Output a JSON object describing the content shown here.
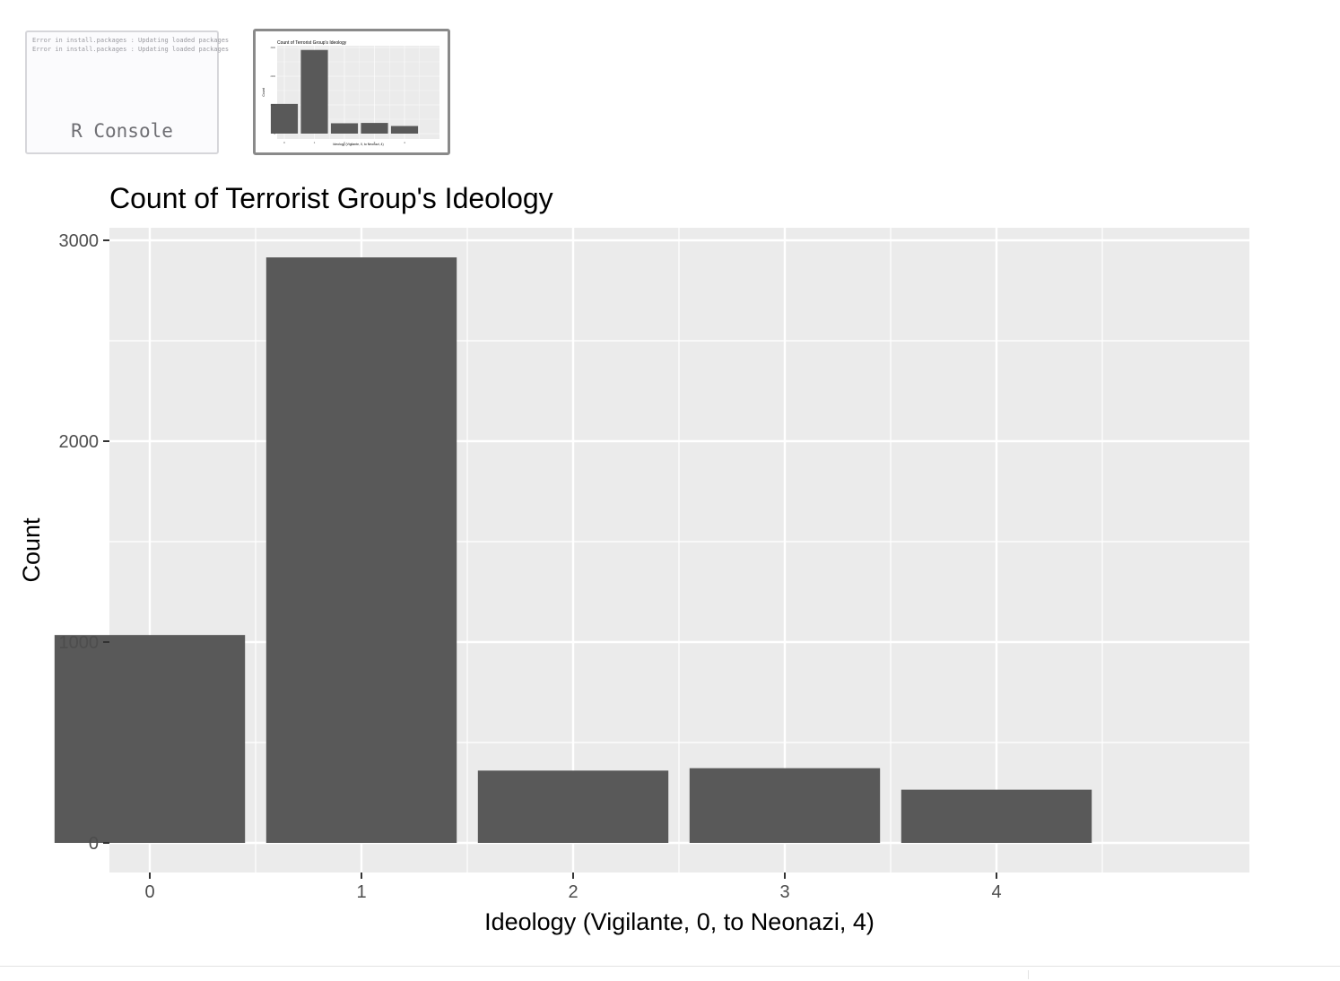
{
  "thumbnails": {
    "console": {
      "label": "R Console",
      "errors": [
        "Error in install.packages : Updating loaded packages",
        "Error in install.packages : Updating loaded packages"
      ]
    },
    "plot": {
      "title": "Count of Terrorist Group's Ideology",
      "xlabel": "Ideology (Vigilante, 0, to Neonazi, 4)",
      "ylabel": "Count"
    }
  },
  "colors": {
    "panel": "#ebebeb",
    "grid_major": "#ffffff",
    "bar": "#595959",
    "text": "#000000",
    "tick_text": "#4d4d4d"
  },
  "chart_data": {
    "type": "bar",
    "title": "Count of Terrorist Group's Ideology",
    "xlabel": "Ideology (Vigilante, 0, to Neonazi, 4)",
    "ylabel": "Count",
    "categories": [
      "0",
      "1",
      "2",
      "3",
      "4"
    ],
    "values": [
      1035,
      2915,
      360,
      372,
      265
    ],
    "ylim": [
      0,
      3000
    ],
    "yticks": [
      0,
      1000,
      2000,
      3000
    ],
    "grid": true,
    "legend": "none"
  }
}
